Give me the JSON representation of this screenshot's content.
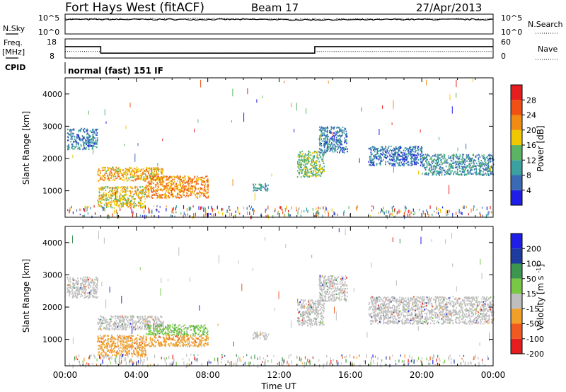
{
  "header": {
    "station": "Fort Hays West (fitACF)",
    "beam": "Beam 17",
    "date": "27/Apr/2013"
  },
  "top_panels": {
    "nsky_label": "N.Sky",
    "nsky_ticks": [
      "10^5",
      "10^0"
    ],
    "nsearch_label": "N.Search",
    "nsearch_ticks": [
      "10^5",
      "10^0"
    ],
    "freq_label": "Freq.",
    "freq_unit": "[MHz]",
    "freq_ticks": [
      "18",
      "8"
    ],
    "nave_label": "Nave",
    "nave_ticks": [
      "60",
      "0"
    ],
    "cpid_label": "CPID",
    "cpid_value": "normal (fast) 151 IF"
  },
  "colors": {
    "ground_scatter": "#bebebe"
  },
  "chart_data": [
    {
      "type": "line",
      "title": "",
      "xlabel": "",
      "ylabel": "",
      "series": [
        {
          "name": "N.Sky",
          "x": [
            0,
            6,
            12,
            18,
            24
          ],
          "values": [
            4.2,
            4.2,
            4.1,
            4.2,
            4.2
          ]
        },
        {
          "name": "N.Search",
          "x": [
            0,
            6,
            12,
            18,
            24
          ],
          "values": [
            4.4,
            4.4,
            4.3,
            4.4,
            4.4
          ]
        }
      ]
    },
    {
      "type": "line",
      "title": "",
      "xlabel": "",
      "ylabel": "",
      "series": [
        {
          "name": "Freq.",
          "x": [
            0,
            2.0,
            2.0,
            14.0,
            14.0,
            24
          ],
          "values": [
            15,
            15,
            11,
            11,
            15,
            15
          ]
        },
        {
          "name": "Nave",
          "x": [
            0,
            2.0,
            2.0,
            14.0,
            14.0,
            24
          ],
          "values": [
            20,
            20,
            14,
            14,
            20,
            20
          ]
        }
      ]
    },
    {
      "type": "heatmap",
      "title": "",
      "xlabel": "",
      "ylabel": "Slant Range [km]",
      "xlim": [
        0,
        24
      ],
      "ylim": [
        180,
        4500
      ],
      "yticks": [
        "1000",
        "2000",
        "3000",
        "4000"
      ],
      "colorbar": {
        "label": "Power [dB]",
        "ticks": [
          "4",
          "8",
          "12",
          "16",
          "20",
          "24",
          "28"
        ],
        "range": [
          0,
          32
        ]
      },
      "echo_regions": [
        {
          "t0": 0.1,
          "t1": 1.8,
          "r0": 2300,
          "r1": 2950,
          "level": 8
        },
        {
          "t0": 1.8,
          "t1": 5.5,
          "r0": 1320,
          "r1": 1750,
          "level": 20
        },
        {
          "t0": 1.8,
          "t1": 4.5,
          "r0": 500,
          "r1": 1150,
          "level": 18
        },
        {
          "t0": 4.5,
          "t1": 8.0,
          "r0": 800,
          "r1": 1480,
          "level": 22
        },
        {
          "t0": 10.5,
          "t1": 11.4,
          "r0": 1020,
          "r1": 1250,
          "level": 8
        },
        {
          "t0": 13.0,
          "t1": 14.5,
          "r0": 1450,
          "r1": 2250,
          "level": 14
        },
        {
          "t0": 14.2,
          "t1": 15.8,
          "r0": 2200,
          "r1": 3000,
          "level": 8
        },
        {
          "t0": 17.0,
          "t1": 20.0,
          "r0": 1800,
          "r1": 2400,
          "level": 7
        },
        {
          "t0": 20.0,
          "t1": 24.0,
          "r0": 1500,
          "r1": 2150,
          "level": 9
        }
      ]
    },
    {
      "type": "heatmap",
      "title": "",
      "xlabel": "Time UT",
      "ylabel": "Slant Range [km]",
      "xlim": [
        0,
        24
      ],
      "ylim": [
        180,
        4500
      ],
      "xticks": [
        "00:00",
        "04:00",
        "08:00",
        "12:00",
        "16:00",
        "20:00",
        "00:00"
      ],
      "yticks": [
        "1000",
        "2000",
        "3000",
        "4000"
      ],
      "colorbar": {
        "label": "Velocity [m s^-1]",
        "ticks": [
          "200",
          "100",
          "50",
          "15",
          "-15",
          "-50",
          "-100",
          "-200"
        ]
      },
      "echo_regions": [
        {
          "t0": 0.1,
          "t1": 1.8,
          "r0": 2300,
          "r1": 2950,
          "velocity": "ground"
        },
        {
          "t0": 1.8,
          "t1": 5.5,
          "r0": 1320,
          "r1": 1750,
          "velocity": "ground"
        },
        {
          "t0": 4.5,
          "t1": 8.0,
          "r0": 1150,
          "r1": 1480,
          "velocity": 50
        },
        {
          "t0": 1.8,
          "t1": 4.5,
          "r0": 500,
          "r1": 1150,
          "velocity": -15
        },
        {
          "t0": 4.5,
          "t1": 8.0,
          "r0": 800,
          "r1": 1150,
          "velocity": -50
        },
        {
          "t0": 10.5,
          "t1": 11.4,
          "r0": 1020,
          "r1": 1250,
          "velocity": "ground"
        },
        {
          "t0": 13.0,
          "t1": 14.5,
          "r0": 1450,
          "r1": 2250,
          "velocity": "ground"
        },
        {
          "t0": 14.2,
          "t1": 15.8,
          "r0": 2200,
          "r1": 3000,
          "velocity": "ground"
        },
        {
          "t0": 17.0,
          "t1": 24.0,
          "r0": 1500,
          "r1": 2350,
          "velocity": "ground"
        }
      ]
    }
  ]
}
